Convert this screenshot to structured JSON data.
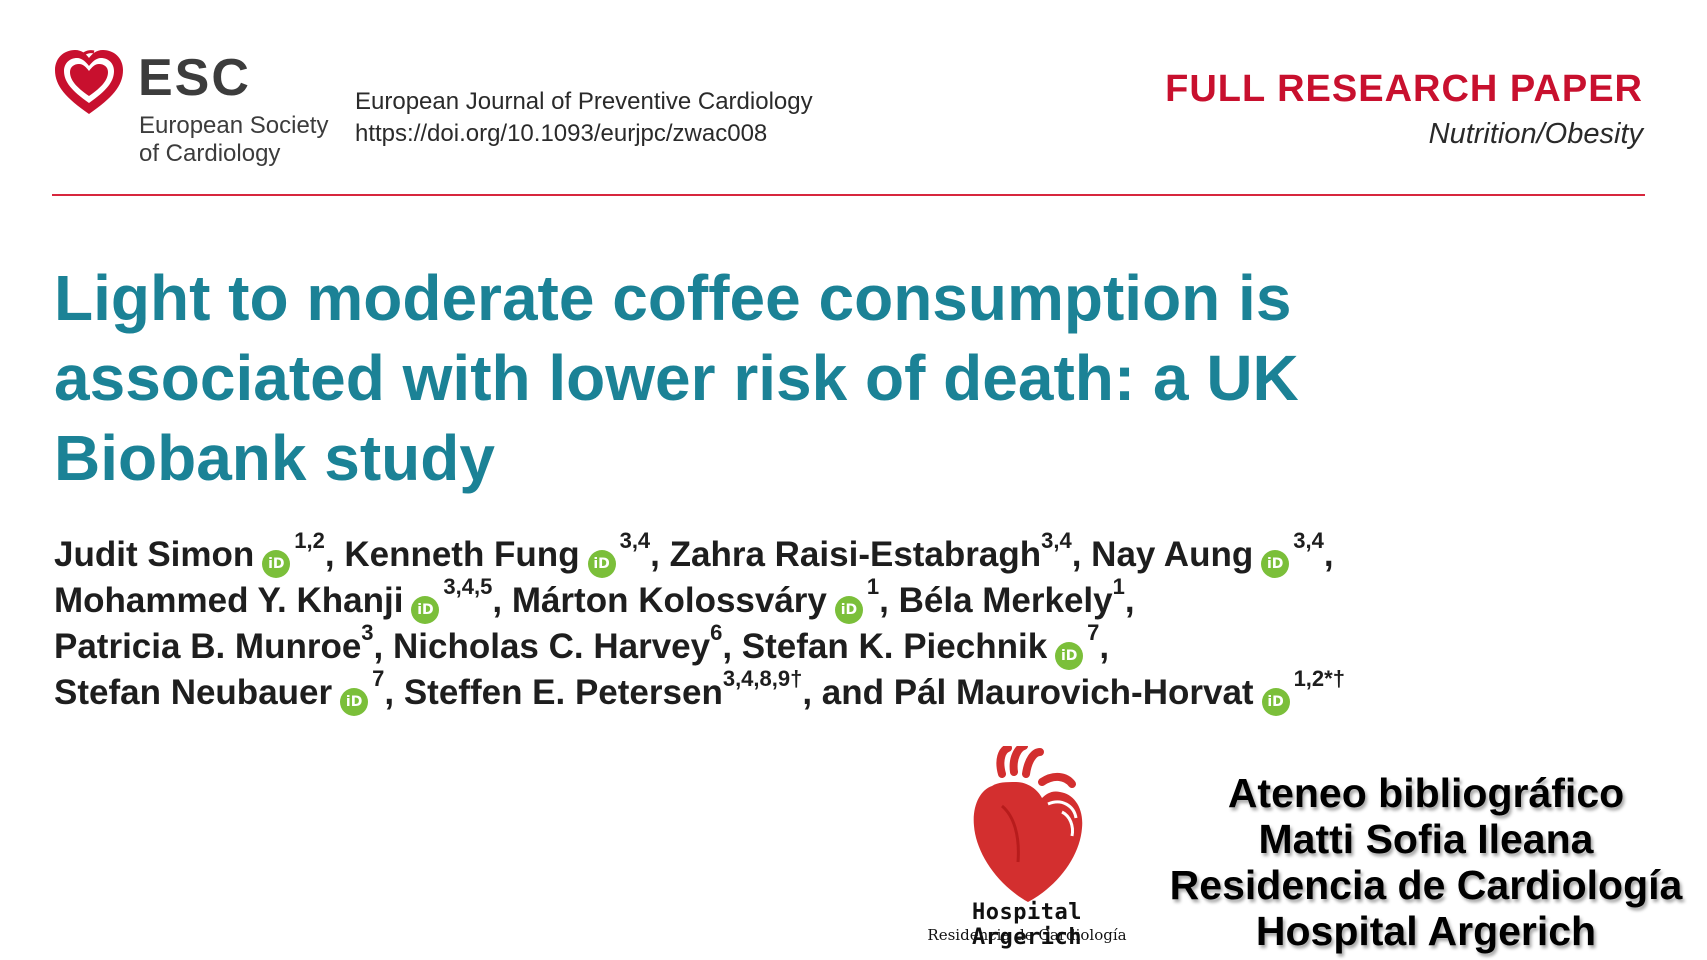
{
  "header": {
    "org_abbrev": "ESC",
    "org_line1": "European Society",
    "org_line2": "of Cardiology",
    "journal": "European Journal of Preventive Cardiology",
    "doi": "https://doi.org/10.1093/eurjpc/zwac008",
    "paper_type": "FULL RESEARCH PAPER",
    "category": "Nutrition/Obesity"
  },
  "title": {
    "line1": "Light to moderate coffee consumption is",
    "line2": "associated with lower risk of death: a UK",
    "line3": "Biobank study"
  },
  "orcid_label": "iD",
  "authors": [
    {
      "name": "Judit Simon",
      "aff": "1,2",
      "orcid": true,
      "sep": ", "
    },
    {
      "name": "Kenneth Fung",
      "aff": "3,4",
      "orcid": true,
      "sep": ", "
    },
    {
      "name": "Zahra Raisi-Estabragh",
      "aff": "3,4",
      "orcid": false,
      "sep": ", "
    },
    {
      "name": "Nay Aung",
      "aff": "3,4",
      "orcid": true,
      "sep": ","
    },
    {
      "name": "Mohammed Y. Khanji",
      "aff": "3,4,5",
      "orcid": true,
      "sep": ", "
    },
    {
      "name": "Márton Kolossváry",
      "aff": "1",
      "orcid": true,
      "sep": ", "
    },
    {
      "name": "Béla Merkely",
      "aff": "1",
      "orcid": false,
      "sep": ","
    },
    {
      "name": "Patricia B. Munroe",
      "aff": "3",
      "orcid": false,
      "sep": ", "
    },
    {
      "name": "Nicholas C. Harvey",
      "aff": "6",
      "orcid": false,
      "sep": ", "
    },
    {
      "name": "Stefan K. Piechnik",
      "aff": "7",
      "orcid": true,
      "sep": ","
    },
    {
      "name": "Stefan Neubauer",
      "aff": "7",
      "orcid": true,
      "sep": ", "
    },
    {
      "name": "Steffen E. Petersen",
      "aff": "3,4,8,9†",
      "orcid": false,
      "sep": ", and "
    },
    {
      "name": "Pál Maurovich-Horvat",
      "aff": "1,2*†",
      "orcid": true,
      "sep": ""
    }
  ],
  "hospital": {
    "name": "Hospital Argerich",
    "subtitle": "Residencia de Cardiología"
  },
  "presenter": {
    "line1": "Ateneo bibliográfico",
    "line2": "Matti Sofia Ileana",
    "line3": "Residencia de Cardiología",
    "line4": "Hospital Argerich"
  },
  "colors": {
    "accent_red": "#c8102e",
    "title_teal": "#1b8296",
    "orcid_green": "#7bbf3a"
  }
}
